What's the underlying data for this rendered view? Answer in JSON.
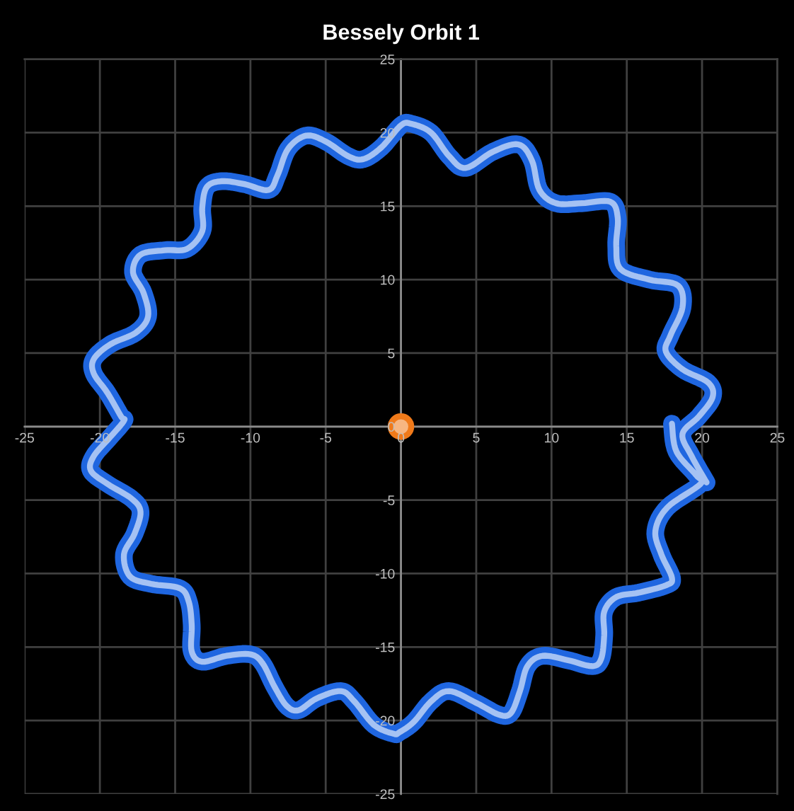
{
  "chart_data": {
    "type": "line",
    "title": "Bessely Orbit 1",
    "xlim": [
      -25,
      25
    ],
    "ylim": [
      -25,
      25
    ],
    "xticks": [
      -25,
      -20,
      -15,
      -10,
      -5,
      0,
      5,
      10,
      15,
      20,
      25
    ],
    "yticks": [
      -25,
      -20,
      -15,
      -10,
      -5,
      0,
      5,
      10,
      15,
      20,
      25
    ],
    "grid": true,
    "series": [
      {
        "color": "#1f66e0",
        "marker": "none",
        "line_style": "solid",
        "x": [
          18.0,
          18.3,
          19.6,
          19.9,
          17.7,
          16.9,
          17.3,
          18.0,
          17.6,
          15.8,
          14.3,
          13.5,
          13.5,
          13.3,
          12.7,
          11.1,
          9.4,
          8.4,
          7.9,
          7.3,
          6.5,
          5.0,
          3.2,
          2.0,
          0.85,
          -0.1,
          -0.5,
          -1.8,
          -3.1,
          -4.0,
          -5.6,
          -6.8,
          -7.6,
          -8.4,
          -9.2,
          -10.0,
          -11.6,
          -13.2,
          -13.9,
          -13.9,
          -14.1,
          -14.7,
          -16.6,
          -18.0,
          -18.4,
          -17.7,
          -17.3,
          -17.9,
          -19.5,
          -20.6,
          -20.4,
          -19.3,
          -18.4,
          -18.6,
          -19.5,
          -20.4,
          -20.4,
          -19.3,
          -17.6,
          -16.8,
          -17.1,
          -17.8,
          -17.3,
          -15.7,
          -14.2,
          -13.2,
          -13.2,
          -12.9,
          -11.9,
          -10.4,
          -8.8,
          -8.2,
          -7.5,
          -6.3,
          -5.0,
          -3.5,
          -2.5,
          -1.3,
          0.0,
          0.7,
          2.0,
          3.2,
          4.3,
          6.1,
          7.8,
          8.7,
          9.2,
          10.3,
          12.0,
          13.9,
          14.4,
          14.3,
          14.6,
          16.5,
          18.4,
          18.7,
          17.9,
          17.6,
          18.7,
          20.4,
          20.7,
          19.8,
          18.7,
          19.3,
          20.3
        ],
        "values": [
          0.2,
          -1.7,
          -3.3,
          -3.9,
          -5.5,
          -7.1,
          -8.7,
          -10.3,
          -10.8,
          -11.3,
          -11.6,
          -12.6,
          -14.2,
          -15.8,
          -16.3,
          -15.9,
          -15.6,
          -16.3,
          -18.0,
          -19.5,
          -19.6,
          -18.8,
          -18.0,
          -18.7,
          -20.1,
          -20.8,
          -20.9,
          -20.3,
          -18.7,
          -18.0,
          -18.5,
          -19.3,
          -19.0,
          -17.7,
          -16.1,
          -15.5,
          -15.6,
          -16.0,
          -15.3,
          -13.5,
          -11.9,
          -11.0,
          -10.7,
          -10.2,
          -8.7,
          -7.3,
          -5.8,
          -4.9,
          -3.9,
          -3.0,
          -2.0,
          -0.7,
          0.4,
          0.7,
          2.3,
          3.6,
          4.6,
          5.6,
          6.4,
          7.5,
          9.1,
          10.5,
          11.7,
          12.0,
          12.1,
          13.3,
          14.9,
          16.3,
          16.7,
          16.5,
          16.1,
          17.1,
          18.9,
          19.8,
          19.4,
          18.4,
          18.2,
          19.0,
          20.5,
          20.6,
          20.0,
          18.4,
          17.6,
          18.7,
          19.2,
          18.1,
          16.1,
          15.2,
          15.2,
          15.3,
          14.2,
          12.3,
          10.7,
          10.0,
          9.6,
          8.1,
          6.2,
          5.1,
          3.9,
          3.0,
          2.0,
          0.7,
          -0.5,
          -2.0,
          -3.8
        ]
      },
      {
        "type": "scatter",
        "color": "#f07a1a",
        "marker": "circle",
        "x": [
          0
        ],
        "values": [
          0
        ]
      }
    ]
  }
}
